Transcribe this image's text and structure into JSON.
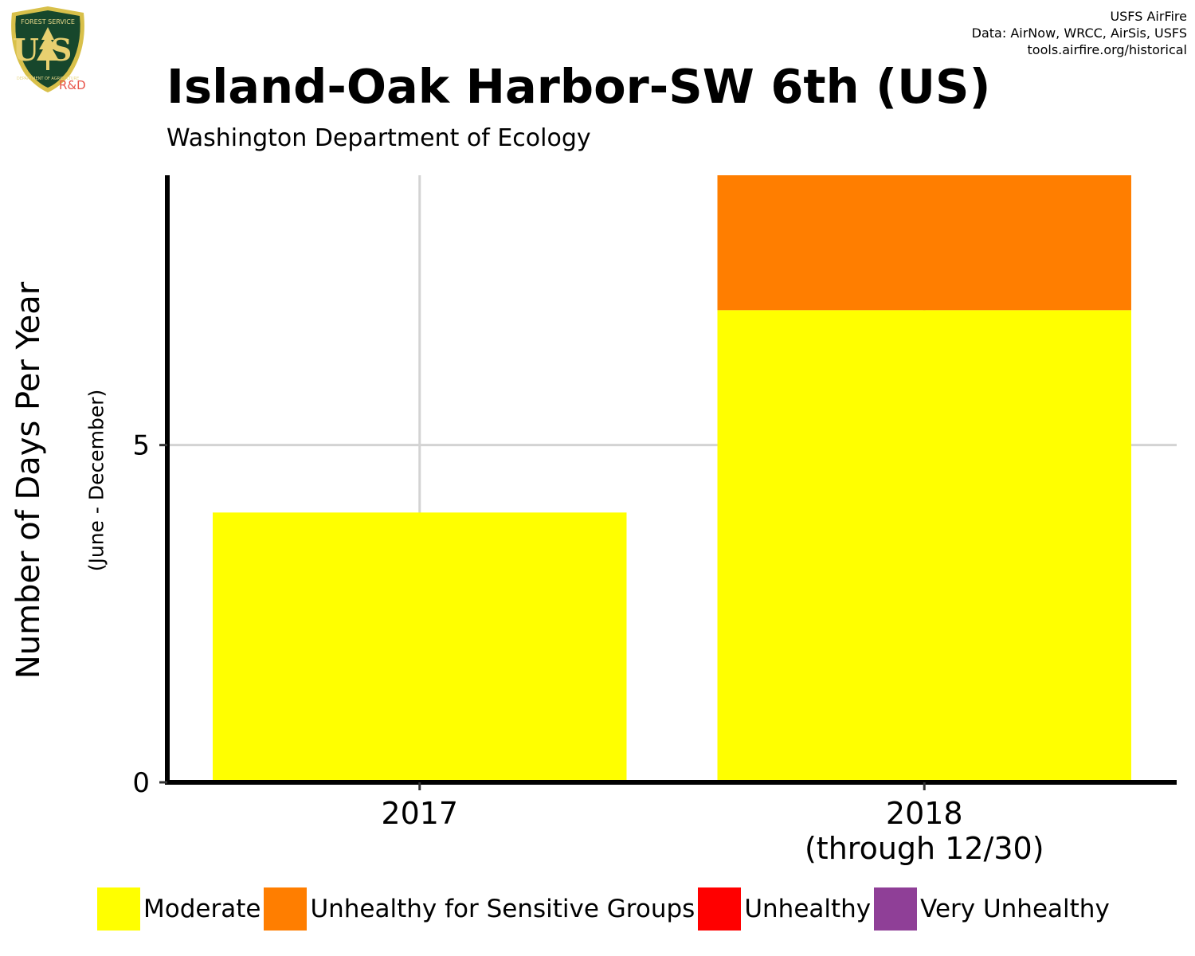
{
  "header": {
    "title": "Island-Oak Harbor-SW 6th (US)",
    "subtitle": "Washington Department of Ecology",
    "credits": [
      "USFS AirFire",
      "Data: AirNow, WRCC, AirSis, USFS",
      "tools.airfire.org/historical"
    ]
  },
  "logo": {
    "top_text": "FOREST SERVICE",
    "letters": "US",
    "bottom_text": "DEPARTMENT OF AGRICULTURE",
    "rd": "R&D"
  },
  "chart_data": {
    "type": "bar",
    "stacked": true,
    "categories": [
      "2017",
      "2018\n(through 12/30)"
    ],
    "category_lines": [
      [
        "2017"
      ],
      [
        "2018",
        "(through 12/30)"
      ]
    ],
    "series": [
      {
        "name": "Moderate",
        "color": "#FFFF00",
        "values": [
          4,
          7
        ]
      },
      {
        "name": "Unhealthy for Sensitive Groups",
        "color": "#FF7E00",
        "values": [
          0,
          2
        ]
      },
      {
        "name": "Unhealthy",
        "color": "#FF0000",
        "values": [
          0,
          0
        ]
      },
      {
        "name": "Very Unhealthy",
        "color": "#8F3F97",
        "values": [
          0,
          0
        ]
      }
    ],
    "ylabel": "Number of Days Per Year",
    "ylabel_sub": "(June - December)",
    "yticks": [
      0,
      5
    ],
    "ylim": [
      0,
      9
    ],
    "grid": true,
    "legend_position": "bottom"
  }
}
